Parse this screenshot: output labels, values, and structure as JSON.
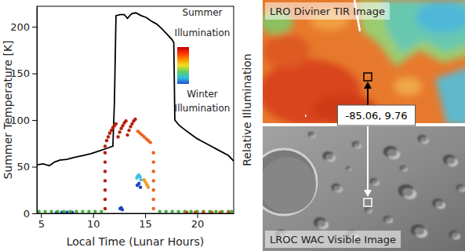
{
  "chart_data": {
    "type": "line",
    "x_label": "Local Time (Lunar Hours)",
    "y_label": "Summer Temperature [K]",
    "y2_label": "Relative Illumination",
    "xlim": [
      4.6,
      23.5
    ],
    "xticks": [
      5,
      10,
      15,
      20
    ],
    "ylim": [
      0,
      222
    ],
    "yticks": [
      0,
      50,
      100,
      150,
      200
    ],
    "colorbar": {
      "colors": [
        "#c00000",
        "#ff3000",
        "#ff9000",
        "#f0e020",
        "#60d060",
        "#30c0e0",
        "#2050d0"
      ],
      "top_label": [
        "Summer",
        "Illumination"
      ],
      "bottom_label": [
        "Winter",
        "Illumination"
      ]
    },
    "series": [
      {
        "type": "line",
        "color": "#000000",
        "line_style": "solid",
        "x": [
          4.6,
          5.2,
          5.8,
          6.3,
          6.8,
          7.5,
          8.2,
          9,
          9.8,
          10.6,
          11.4,
          11.9,
          12.05,
          12.2,
          12.6,
          13.0,
          13.3,
          13.7,
          14.1,
          14.6,
          15.1,
          15.6,
          16.1,
          16.6,
          17.1,
          17.6,
          17.75,
          17.85,
          18.3,
          19,
          20,
          21,
          22,
          23,
          23.5
        ],
        "values": [
          52,
          53,
          51,
          55,
          57,
          58,
          60,
          62,
          64,
          67,
          70,
          72,
          120,
          212,
          213,
          213,
          209,
          214,
          215,
          212,
          210,
          206,
          203,
          198,
          192,
          186,
          183,
          100,
          94,
          88,
          80,
          74,
          68,
          62,
          56
        ]
      },
      {
        "type": "scatter",
        "color": "#b5200f",
        "marker": "circle",
        "x": [
          11.15,
          11.15,
          11.15,
          11.15,
          11.15,
          11.15,
          11.15,
          11.15,
          11.3,
          11.45,
          11.6,
          11.75,
          11.9,
          12.05,
          12.2,
          12.4,
          12.55,
          12.7,
          12.85,
          13.0,
          13.15,
          13.3,
          13.45,
          13.6,
          13.75,
          13.9,
          14.05
        ],
        "values": [
          5,
          15,
          25,
          35,
          45,
          55,
          65,
          72,
          78,
          82,
          86,
          89,
          92,
          94,
          96,
          82,
          87,
          91,
          94,
          97,
          99,
          84,
          89,
          93,
          96,
          99,
          101
        ]
      },
      {
        "type": "scatter",
        "color": "#e8641e",
        "marker": "circle",
        "x": [
          14.3,
          14.5,
          14.7,
          14.9,
          15.1,
          15.3,
          15.5,
          15.8,
          15.8,
          15.8,
          15.8,
          15.8,
          15.8,
          15.8
        ],
        "values": [
          88,
          86,
          84,
          82,
          80,
          78,
          76,
          5,
          15,
          25,
          35,
          45,
          55,
          65
        ]
      },
      {
        "type": "scatter",
        "color": "#f0a030",
        "marker": "circle",
        "x": [
          14.9,
          15.0,
          15.1,
          15.2,
          15.3
        ],
        "values": [
          36,
          34,
          32,
          30,
          28
        ]
      },
      {
        "type": "scatter",
        "color": "#40c0e0",
        "marker": "circle",
        "x": [
          14.2,
          14.3,
          14.4,
          14.5,
          14.6
        ],
        "values": [
          38,
          40,
          41,
          39,
          36
        ]
      },
      {
        "type": "scatter",
        "color": "#2040c0",
        "marker": "circle",
        "x": [
          14.25,
          14.4,
          14.55,
          12.6,
          12.7,
          12.8,
          6.5,
          7,
          7.5,
          8
        ],
        "values": [
          30,
          32,
          28,
          5,
          6,
          4,
          1,
          1,
          1,
          1
        ]
      },
      {
        "type": "scatter",
        "color": "#40b040",
        "marker": "circle",
        "x": [
          4.8,
          5.4,
          6,
          6.6,
          7.2,
          7.8,
          8.4,
          9,
          9.6,
          10.2,
          10.8,
          16.4,
          17,
          17.6,
          18.2,
          18.8,
          19.4,
          20,
          20.6,
          21.2,
          21.8,
          22.4,
          23,
          23.3
        ],
        "values": [
          2,
          2,
          2,
          2,
          2,
          2,
          2,
          2,
          2,
          2,
          2,
          2,
          2,
          2,
          2,
          2,
          2,
          2,
          2,
          2,
          2,
          2,
          2,
          2
        ]
      },
      {
        "type": "scatter",
        "color": "#d05010",
        "marker": "circle",
        "x": [
          19,
          19.8,
          20.6,
          21.4,
          22.2,
          23
        ],
        "values": [
          1,
          1,
          1,
          1,
          1,
          1
        ]
      }
    ]
  },
  "images": [
    {
      "title": "LRO Diviner TIR Image"
    },
    {
      "title": "LROC WAC Visible Image"
    }
  ],
  "marker_label": "-85.06, 9.76"
}
